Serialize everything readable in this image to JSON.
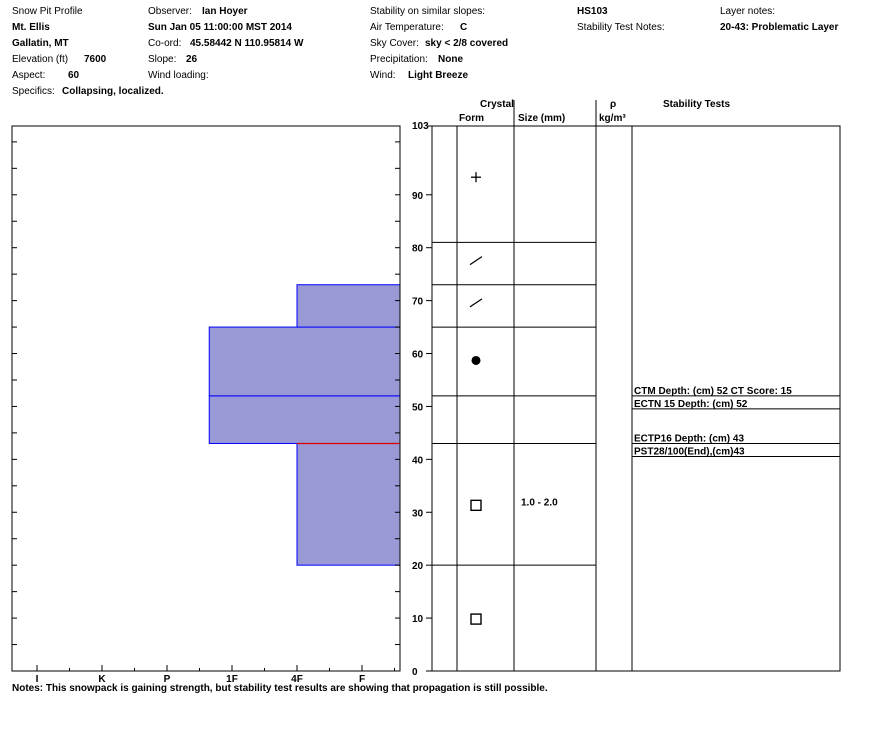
{
  "header": {
    "title": "Snow Pit Profile",
    "location": "Mt. Ellis",
    "region": "Gallatin, MT",
    "elevation_label": "Elevation (ft)",
    "elevation": "7600",
    "aspect_label": "Aspect:",
    "aspect": "60",
    "specifics_label": "Specifics:",
    "specifics": "Collapsing, localized.",
    "observer_label": "Observer:",
    "observer": "Ian Hoyer",
    "datetime": "Sun Jan 05 11:00:00 MST 2014",
    "coord_label": "Co-ord:",
    "coord": "45.58442 N 110.95814 W",
    "slope_label": "Slope:",
    "slope": "26",
    "wind_loading_label": "Wind loading:",
    "stability_label": "Stability on similar slopes:",
    "air_temp_label": "Air Temperature:",
    "air_temp": "C",
    "sky_label": "Sky Cover:",
    "sky": "sky < 2/8 covered",
    "precip_label": "Precipitation:",
    "precip": "None",
    "wind_label": "Wind:",
    "wind": "Light Breeze",
    "hs": "HS103",
    "stab_notes_label": "Stability Test Notes:",
    "layer_notes_label": "Layer notes:",
    "layer_notes": "20-43: Problematic Layer"
  },
  "columns": {
    "crystal": "Crystal",
    "form": "Form",
    "size": "Size (mm)",
    "rho": "ρ",
    "rho_unit": "kg/m³",
    "stability_tests": "Stability Tests"
  },
  "notes": "Notes:  This snowpack is gaining strength, but stability test results are showing that propagation is still possible.",
  "chart_data": {
    "type": "bar",
    "orientation": "horizontal",
    "y_label": "",
    "ylim": [
      0,
      103
    ],
    "yticks": [
      0,
      10,
      20,
      30,
      40,
      50,
      60,
      70,
      80,
      90
    ],
    "top_label": "103",
    "hardness_scale": [
      "I",
      "K",
      "P",
      "1F",
      "4F",
      "F"
    ],
    "bar_color": "#9999d6",
    "layer_line_color": "#0000ff",
    "critical_line_color": "#e00000",
    "layers": [
      {
        "bottom": 0,
        "top": 20,
        "hardness": "F",
        "hardness_index": 5.65
      },
      {
        "bottom": 20,
        "top": 43,
        "hardness": "4F",
        "hardness_index": 4.0
      },
      {
        "bottom": 43,
        "top": 52,
        "hardness": "1F",
        "hardness_index": 2.65
      },
      {
        "bottom": 52,
        "top": 65,
        "hardness": "1F",
        "hardness_index": 2.65
      },
      {
        "bottom": 65,
        "top": 73,
        "hardness": "4F",
        "hardness_index": 4.0
      },
      {
        "bottom": 73,
        "top": 81,
        "hardness": "F",
        "hardness_index": 5.65
      },
      {
        "bottom": 81,
        "top": 103,
        "hardness": "F",
        "hardness_index": 6.65
      }
    ],
    "critical_layer": 43,
    "crystal_rows": [
      {
        "bottom": 81,
        "top": 103,
        "form": "plus"
      },
      {
        "bottom": 73,
        "top": 81,
        "form": "slash"
      },
      {
        "bottom": 65,
        "top": 73,
        "form": "slash"
      },
      {
        "bottom": 52,
        "top": 65,
        "form": "dot"
      },
      {
        "bottom": 43,
        "top": 52,
        "form": "none"
      },
      {
        "bottom": 20,
        "top": 43,
        "form": "square",
        "size": "1.0 - 2.0"
      },
      {
        "bottom": 0,
        "top": 20,
        "form": "square"
      }
    ],
    "stability_tests": [
      {
        "label": "CTM  Depth: (cm) 52 CT Score: 15",
        "depth": 52
      },
      {
        "label": "ECTN 15  Depth: (cm) 52",
        "depth": 52
      },
      {
        "label": "ECTP16  Depth: (cm) 43",
        "depth": 43
      },
      {
        "label": "PST28/100(End),(cm)43",
        "depth": 43
      }
    ]
  }
}
